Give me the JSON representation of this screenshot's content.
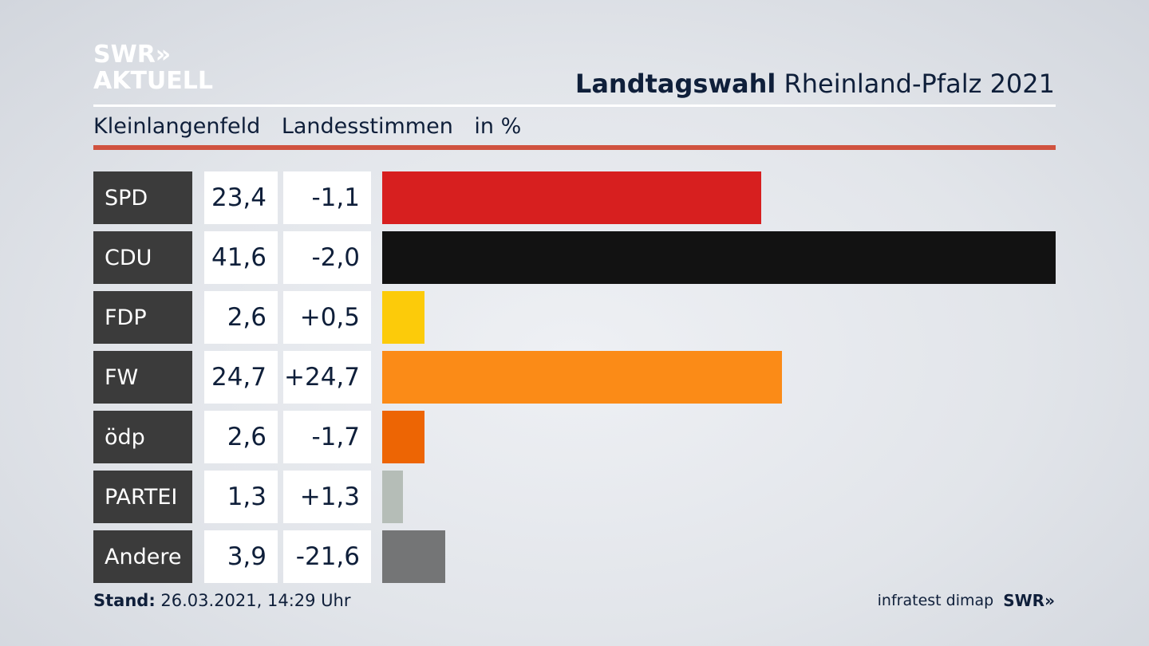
{
  "logo": {
    "line1": "SWR»",
    "line2": "AKTUELL"
  },
  "header": {
    "title_bold": "Landtagswahl",
    "title_rest": " Rheinland-Pfalz 2021"
  },
  "subheader": {
    "location": "Kleinlangenfeld",
    "vote_type": "Landesstimmen",
    "unit": "in %"
  },
  "chart_data": {
    "type": "bar",
    "orientation": "horizontal",
    "categories": [
      "SPD",
      "CDU",
      "FDP",
      "FW",
      "ödp",
      "PARTEI",
      "Andere"
    ],
    "values": [
      23.4,
      41.6,
      2.6,
      24.7,
      2.6,
      1.3,
      3.9
    ],
    "value_labels": [
      "23,4",
      "41,6",
      "2,6",
      "24,7",
      "2,6",
      "1,3",
      "3,9"
    ],
    "change_labels": [
      "-1,1",
      "-2,0",
      "+0,5",
      "+24,7",
      "-1,7",
      "+1,3",
      "-21,6"
    ],
    "changes": [
      -1.1,
      -2.0,
      0.5,
      24.7,
      -1.7,
      1.3,
      -21.6
    ],
    "colors": [
      "#d71f1f",
      "#121212",
      "#fccb0a",
      "#fb8b17",
      "#ed6504",
      "#b5bdb7",
      "#747576"
    ],
    "xlim": [
      0,
      41.6
    ],
    "grid": false,
    "legend": "none"
  },
  "footer": {
    "stand_label": "Stand:",
    "stand_value": " 26.03.2021, 14:29 Uhr",
    "source": "infratest dimap",
    "brand": "SWR»"
  }
}
